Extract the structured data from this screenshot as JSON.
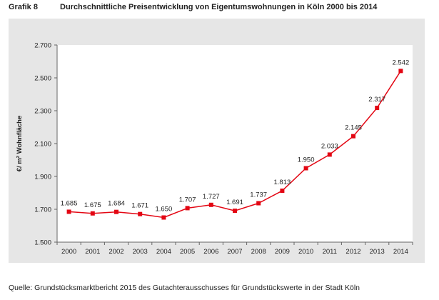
{
  "header": {
    "figure_label": "Grafik 8",
    "title": "Durchschnittliche Preisentwicklung von Eigentumswohnungen in Köln 2000 bis 2014"
  },
  "source": "Quelle: Grundstücksmarktbericht 2015 des Gutachterausschusses für Grundstückswerte in der Stadt Köln",
  "chart_data": {
    "type": "line",
    "title": "Durchschnittliche Preisentwicklung von Eigentumswohnungen in Köln 2000 bis 2014",
    "xlabel": "",
    "ylabel": "€/ m² Wohnfläche",
    "categories": [
      "2000",
      "2001",
      "2002",
      "2003",
      "2004",
      "2005",
      "2006",
      "2007",
      "2008",
      "2009",
      "2010",
      "2011",
      "2012",
      "2013",
      "2014"
    ],
    "series": [
      {
        "values": [
          1685,
          1675,
          1684,
          1671,
          1650,
          1707,
          1727,
          1691,
          1737,
          1813,
          1950,
          2033,
          2145,
          2317,
          2542
        ],
        "labels": [
          "1.685",
          "1.675",
          "1.684",
          "1.671",
          "1.650",
          "1.707",
          "1.727",
          "1.691",
          "1.737",
          "1.813",
          "1.950",
          "2.033",
          "2.145",
          "2.317",
          "2.542"
        ],
        "color": "#e30613"
      }
    ],
    "ylim": [
      1500,
      2700
    ],
    "yticks": [
      1500,
      1700,
      1900,
      2100,
      2300,
      2500,
      2700
    ],
    "ytick_labels": [
      "1.500",
      "1.700",
      "1.900",
      "2.100",
      "2.300",
      "2.500",
      "2.700"
    ],
    "grid": false,
    "legend": "none"
  }
}
